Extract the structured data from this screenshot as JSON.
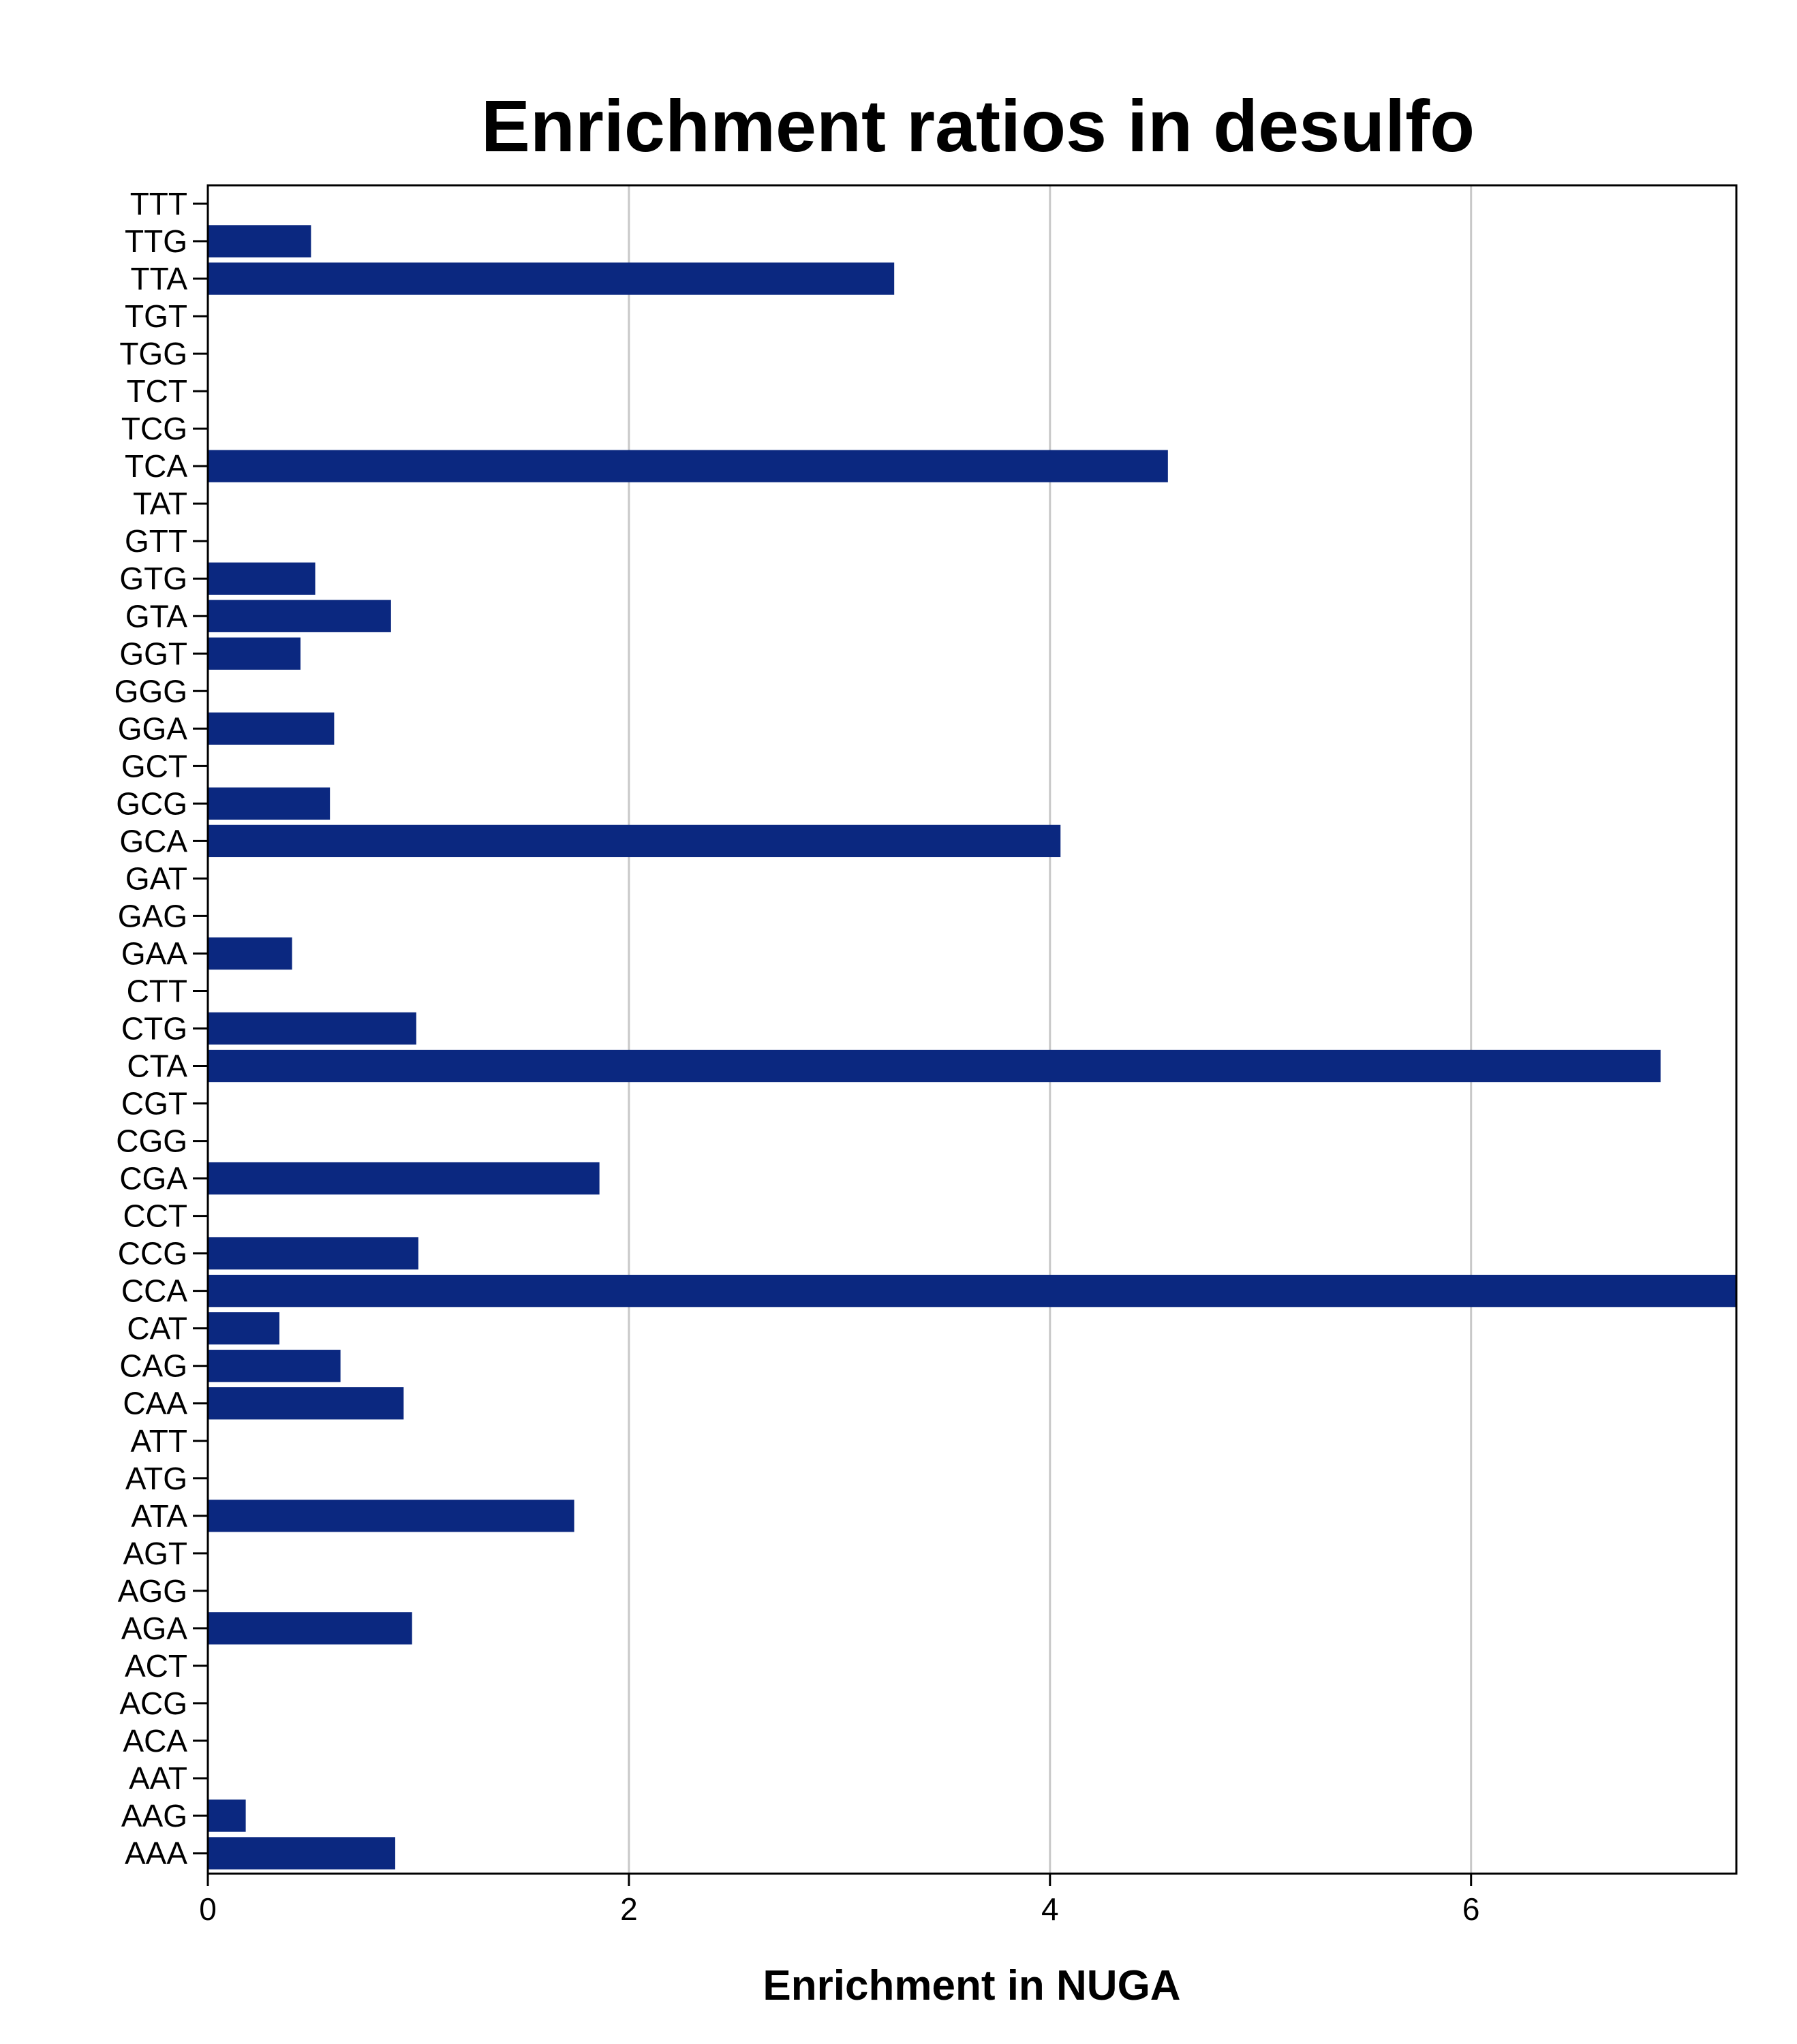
{
  "chart_data": {
    "type": "bar",
    "orientation": "horizontal",
    "title": "Enrichment ratios in desulfo",
    "xlabel": "Enrichment in NUGA",
    "ylabel": "",
    "xlim": [
      0,
      7.26
    ],
    "xticks": [
      0,
      2,
      4,
      6
    ],
    "xtick_labels": [
      "0",
      "2",
      "4",
      "6"
    ],
    "grid": "vertical",
    "bar_color": "#0b2880",
    "categories": [
      "AAA",
      "AAG",
      "AAT",
      "ACA",
      "ACG",
      "ACT",
      "AGA",
      "AGG",
      "AGT",
      "ATA",
      "ATG",
      "ATT",
      "CAA",
      "CAG",
      "CAT",
      "CCA",
      "CCG",
      "CCT",
      "CGA",
      "CGG",
      "CGT",
      "CTA",
      "CTG",
      "CTT",
      "GAA",
      "GAG",
      "GAT",
      "GCA",
      "GCG",
      "GCT",
      "GGA",
      "GGG",
      "GGT",
      "GTA",
      "GTG",
      "GTT",
      "TAT",
      "TCA",
      "TCG",
      "TCT",
      "TGG",
      "TGT",
      "TTA",
      "TTG",
      "TTT"
    ],
    "values": [
      0.89,
      0.18,
      0,
      0,
      0,
      0,
      0.97,
      0,
      0,
      1.74,
      0,
      0,
      0.93,
      0.63,
      0.34,
      7.26,
      1.0,
      0,
      1.86,
      0,
      0,
      6.9,
      0.99,
      0,
      0.4,
      0,
      0,
      4.05,
      0.58,
      0,
      0.6,
      0,
      0.44,
      0.87,
      0.51,
      0,
      0,
      4.56,
      0,
      0,
      0,
      0,
      3.26,
      0.49,
      0
    ]
  }
}
